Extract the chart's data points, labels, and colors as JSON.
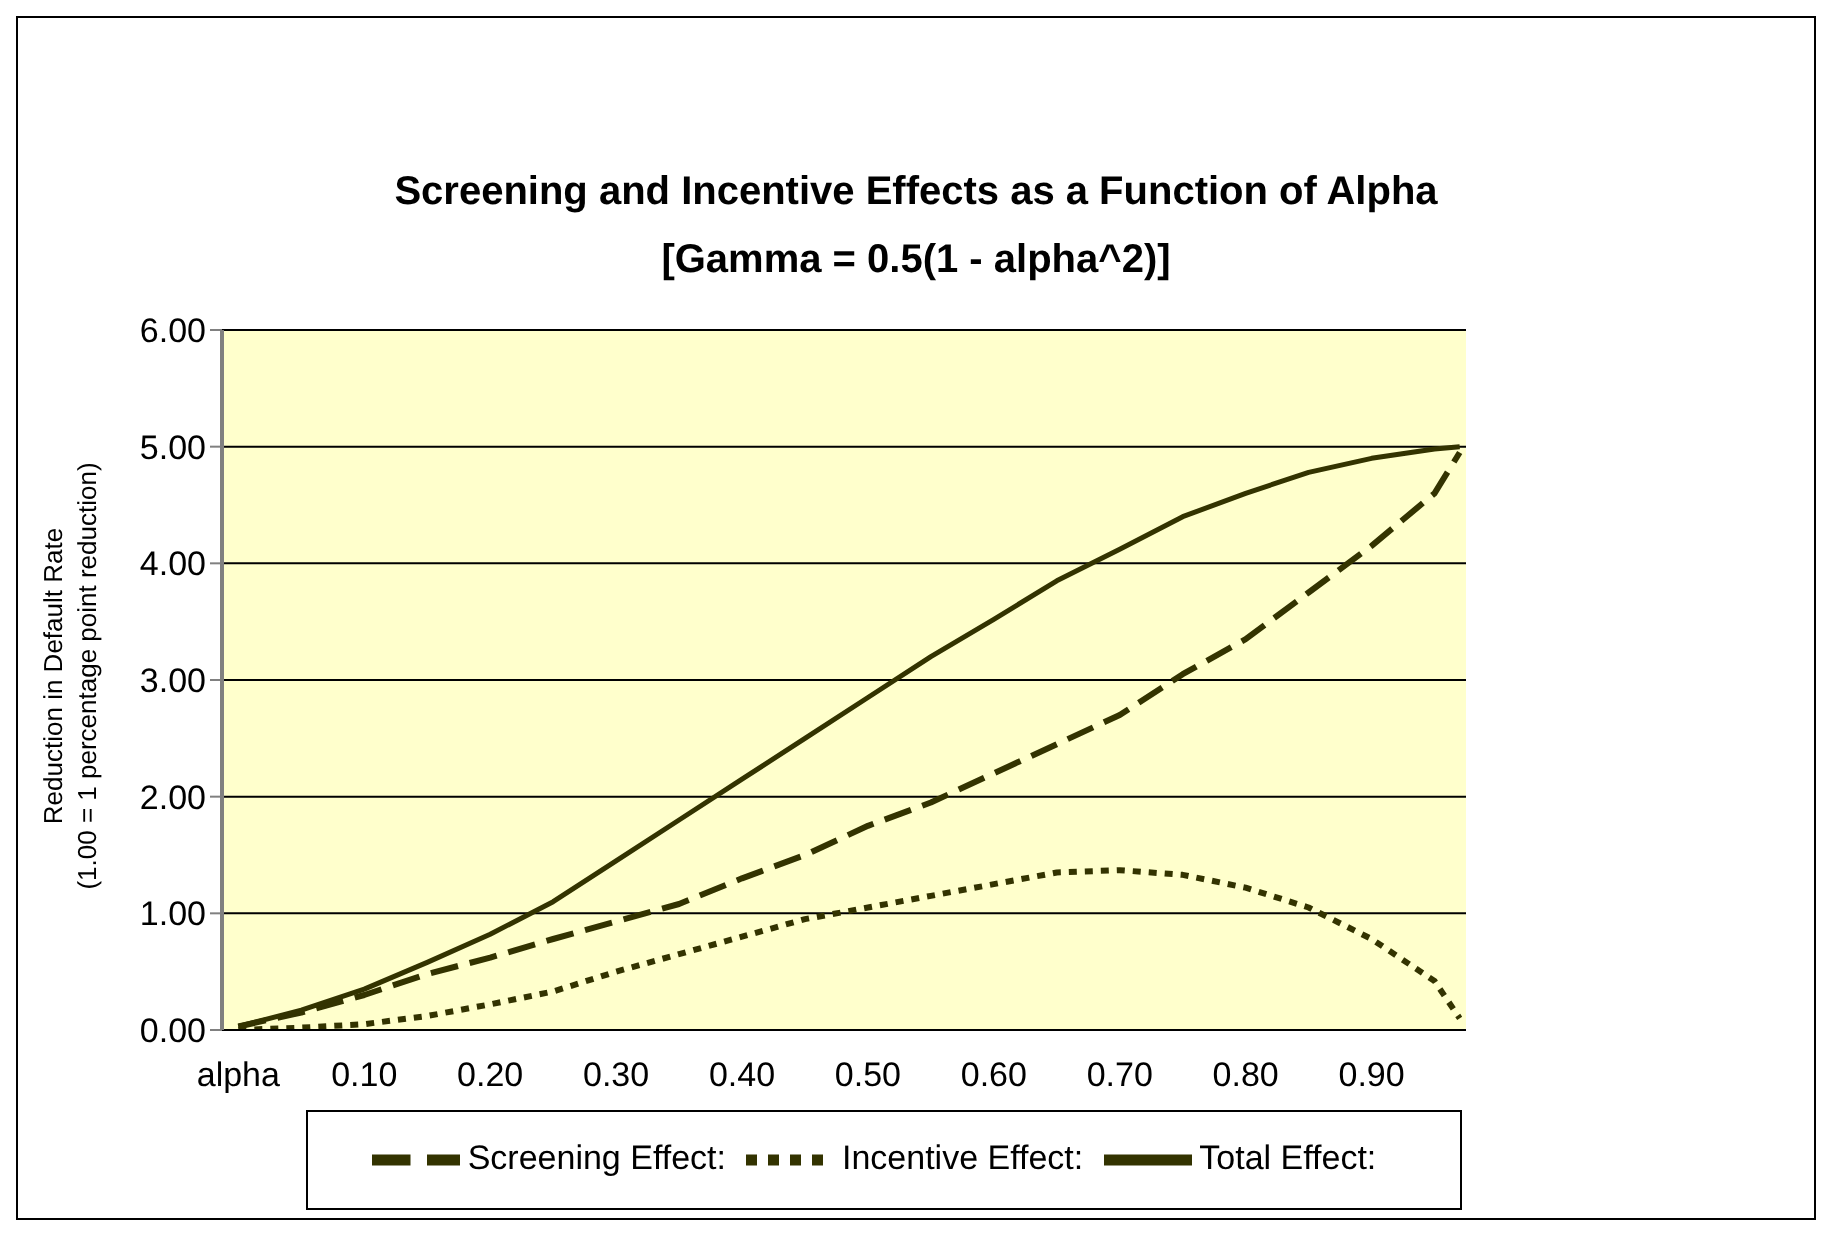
{
  "chart_data": {
    "type": "line",
    "title": "Screening and Incentive Effects as a Function of Alpha",
    "subtitle": "[Gamma = 0.5(1 - alpha^2)]",
    "ylabel": "Reduction in Default Rate\n(1.00 = 1 percentage point reduction)",
    "x": [
      0,
      0.05,
      0.1,
      0.15,
      0.2,
      0.25,
      0.3,
      0.35,
      0.4,
      0.45,
      0.5,
      0.55,
      0.6,
      0.65,
      0.7,
      0.75,
      0.8,
      0.85,
      0.9,
      0.95,
      0.97
    ],
    "series": [
      {
        "name": "Screening Effect:",
        "color": "#333300",
        "line_style": "dashed",
        "values": [
          0.03,
          0.15,
          0.3,
          0.48,
          0.62,
          0.78,
          0.93,
          1.08,
          1.3,
          1.5,
          1.75,
          1.95,
          2.2,
          2.45,
          2.7,
          3.05,
          3.35,
          3.75,
          4.15,
          4.6,
          4.95
        ]
      },
      {
        "name": "Incentive Effect:",
        "color": "#333300",
        "line_style": "dotted",
        "values": [
          0,
          0.02,
          0.05,
          0.12,
          0.22,
          0.33,
          0.5,
          0.65,
          0.8,
          0.95,
          1.05,
          1.15,
          1.25,
          1.35,
          1.37,
          1.33,
          1.22,
          1.05,
          0.78,
          0.42,
          0.1
        ]
      },
      {
        "name": "Total Effect:",
        "color": "#333300",
        "line_style": "solid",
        "values": [
          0.03,
          0.17,
          0.35,
          0.58,
          0.82,
          1.1,
          1.45,
          1.8,
          2.15,
          2.5,
          2.85,
          3.2,
          3.52,
          3.85,
          4.12,
          4.4,
          4.6,
          4.78,
          4.9,
          4.98,
          5.0
        ]
      }
    ],
    "xlim": [
      -0.013,
      0.975
    ],
    "xticks": [
      {
        "value": 0,
        "label": "alpha"
      },
      {
        "value": 0.1,
        "label": "0.10"
      },
      {
        "value": 0.2,
        "label": "0.20"
      },
      {
        "value": 0.3,
        "label": "0.30"
      },
      {
        "value": 0.4,
        "label": "0.40"
      },
      {
        "value": 0.5,
        "label": "0.50"
      },
      {
        "value": 0.6,
        "label": "0.60"
      },
      {
        "value": 0.7,
        "label": "0.70"
      },
      {
        "value": 0.8,
        "label": "0.80"
      },
      {
        "value": 0.9,
        "label": "0.90"
      }
    ],
    "ylim": [
      0,
      6
    ],
    "yticks": [
      {
        "value": 0,
        "label": "0.00"
      },
      {
        "value": 1,
        "label": "1.00"
      },
      {
        "value": 2,
        "label": "2.00"
      },
      {
        "value": 3,
        "label": "3.00"
      },
      {
        "value": 4,
        "label": "4.00"
      },
      {
        "value": 5,
        "label": "5.00"
      },
      {
        "value": 6,
        "label": "6.00"
      }
    ],
    "grid": "y",
    "legend": "bottom",
    "marker": "none"
  }
}
